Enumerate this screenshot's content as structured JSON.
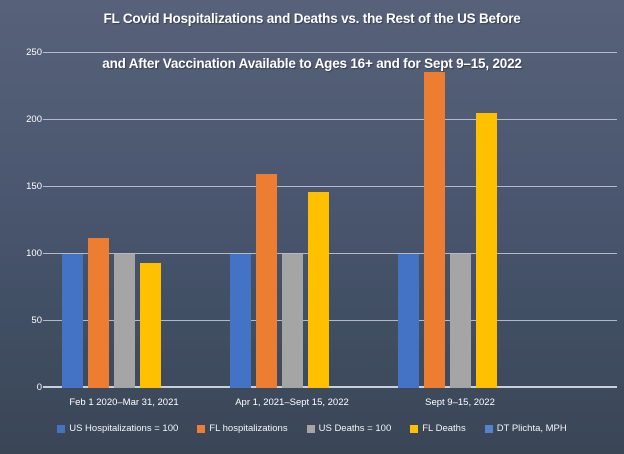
{
  "title": {
    "line1": "FL Covid Hospitalizations and Deaths vs. the Rest of the US Before",
    "line2": "and After Vaccination Available to Ages 16+ and for Sept 9–15, 2022"
  },
  "chart_data": {
    "type": "bar",
    "categories": [
      "Feb 1 2020–Mar 31, 2021",
      "Apr 1, 2021–Sept 15, 2022",
      "Sept 9–15, 2022"
    ],
    "series": [
      {
        "name": "US Hospitalizations = 100",
        "color": "#4472C4",
        "values": [
          100,
          100,
          100
        ]
      },
      {
        "name": "FL hospitalizations",
        "color": "#ED7D31",
        "values": [
          112,
          160,
          236
        ]
      },
      {
        "name": "US Deaths = 100",
        "color": "#A5A5A5",
        "values": [
          100,
          100,
          100
        ]
      },
      {
        "name": "FL Deaths",
        "color": "#FFC000",
        "values": [
          93,
          146,
          205
        ]
      },
      {
        "name": "DT Plichta, MPH",
        "color": "#5585C8",
        "values": [
          0,
          0,
          0
        ]
      }
    ],
    "ylim": [
      0,
      250
    ],
    "yticks": [
      0,
      50,
      100,
      150,
      200,
      250
    ],
    "grid": true,
    "legend_position": "bottom",
    "title_color": "#FFFFFF",
    "axis_text_color": "#FFFFFF"
  }
}
